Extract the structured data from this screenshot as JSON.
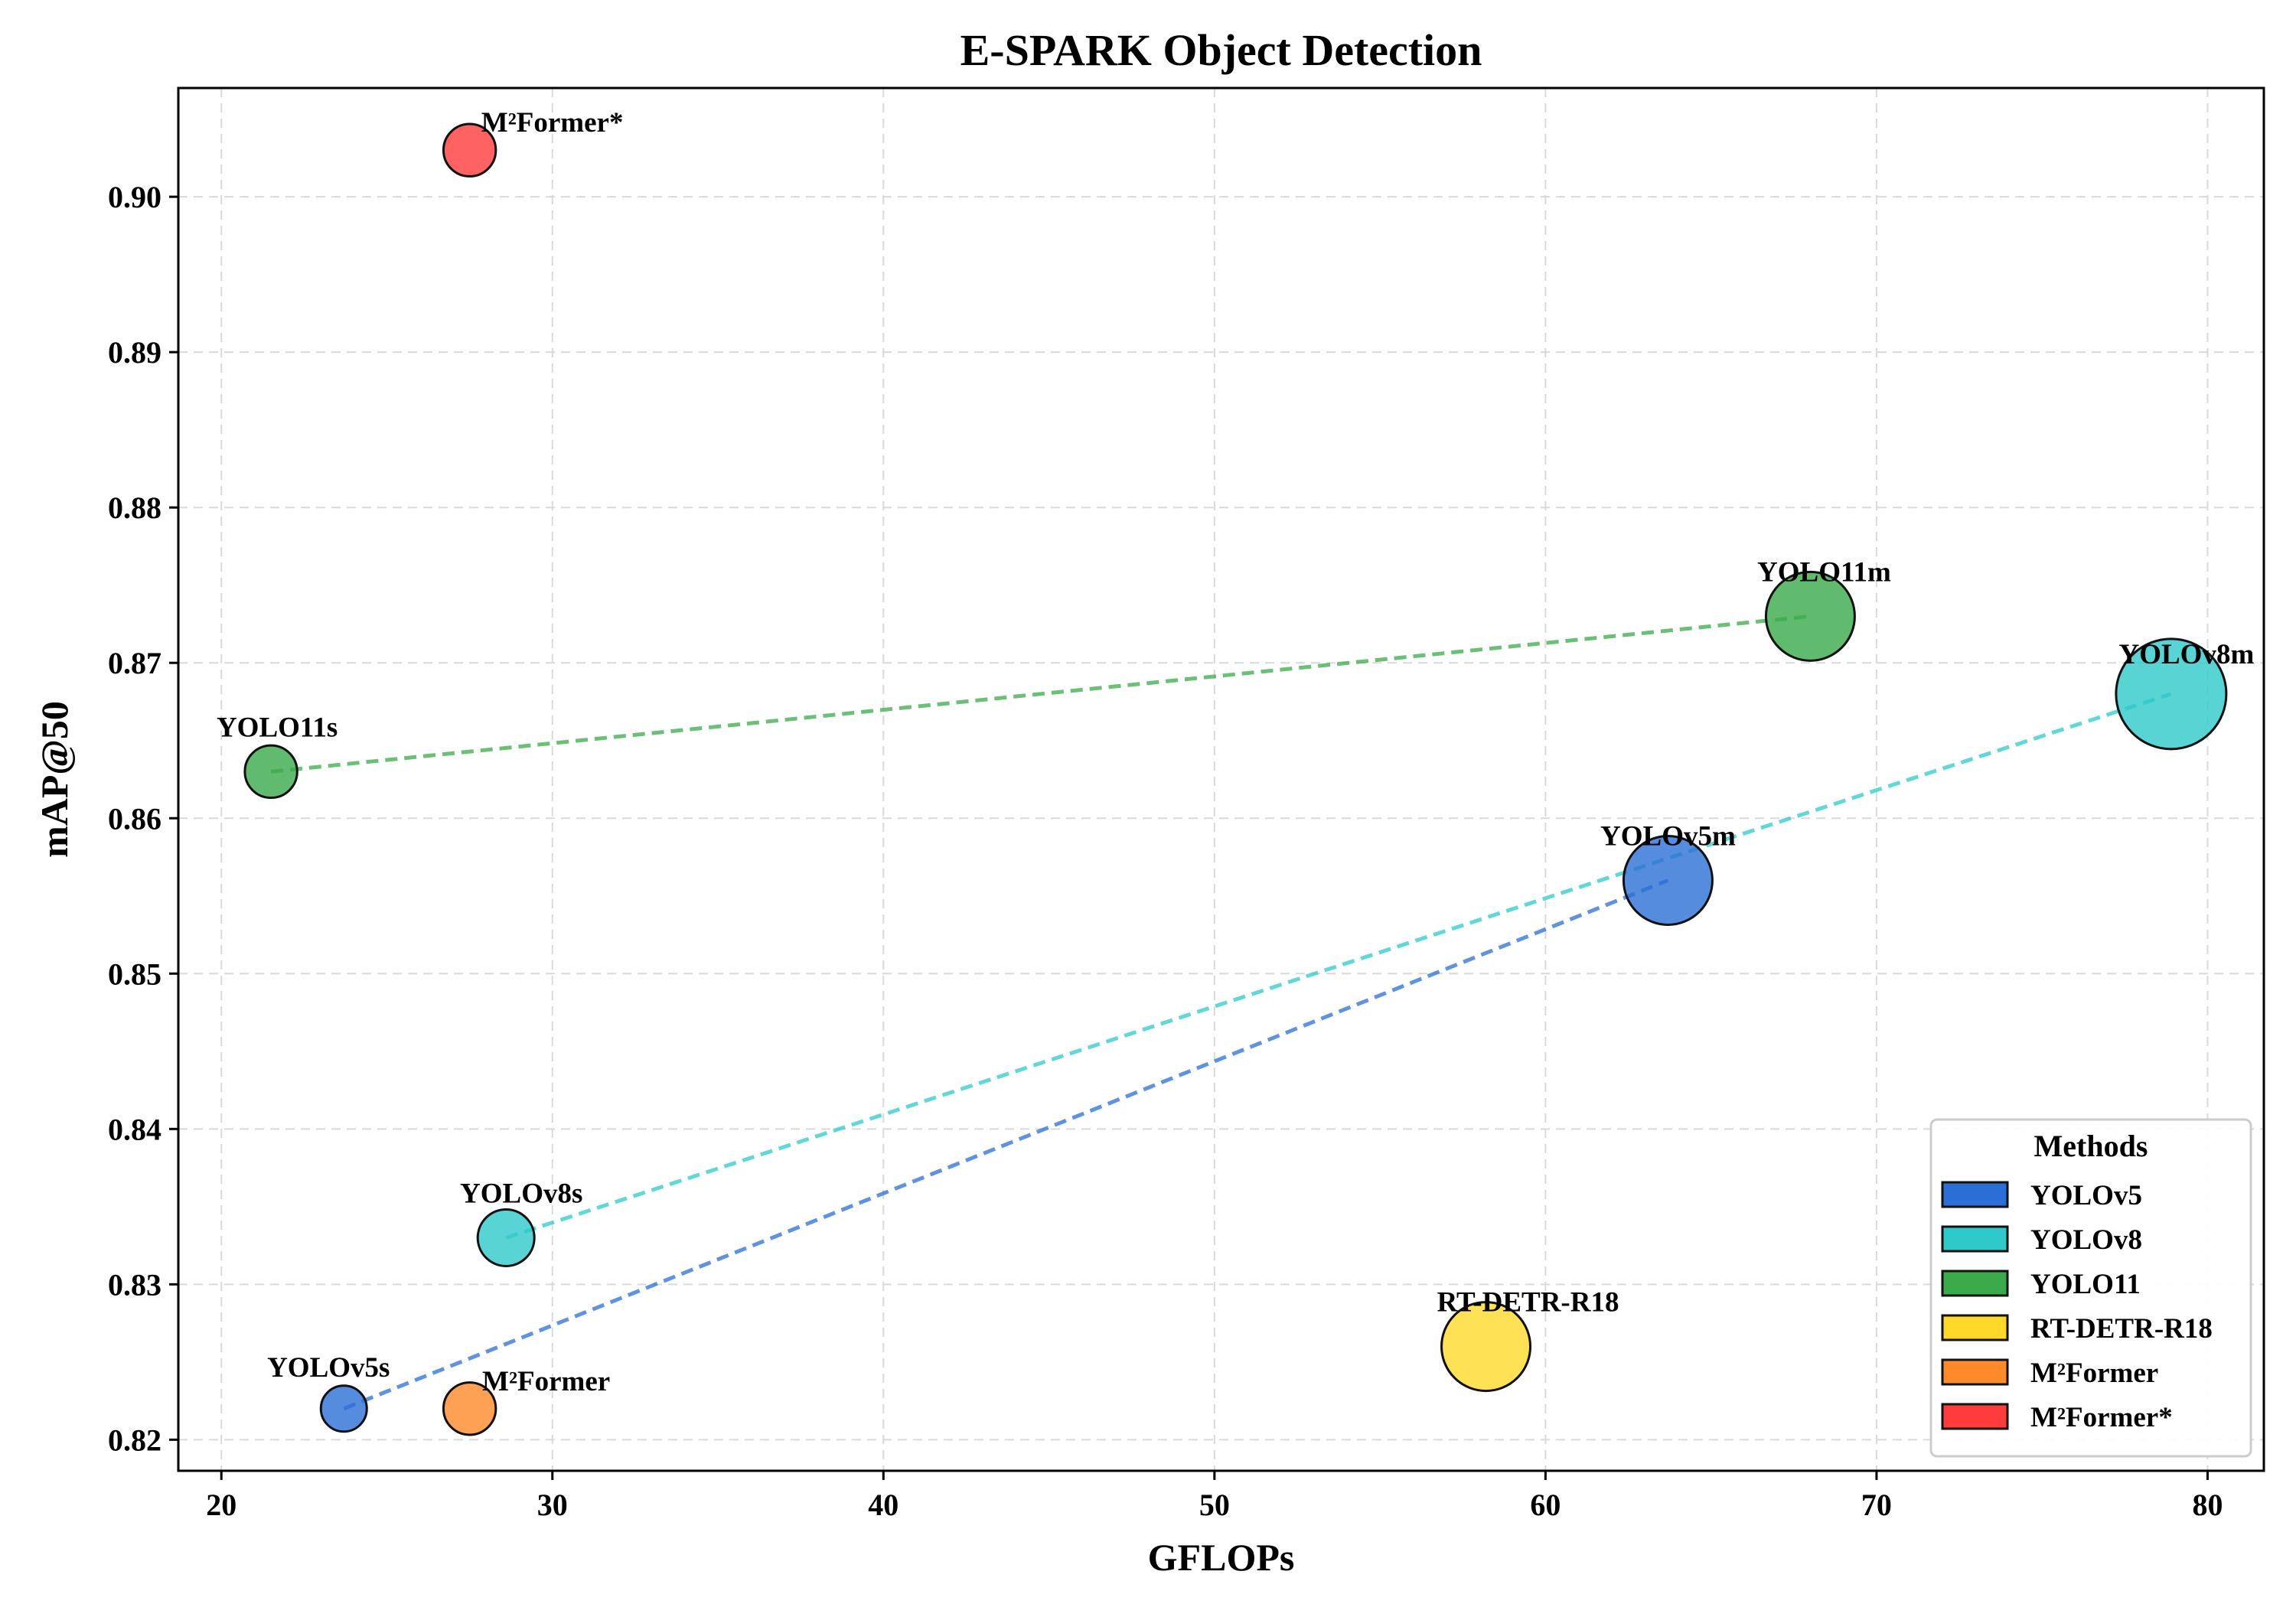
{
  "chart_data": {
    "type": "scatter",
    "title": "E-SPARK Object Detection",
    "xlabel": "GFLOPs",
    "ylabel": "mAP@50",
    "xlim": [
      18.7,
      81.7
    ],
    "ylim": [
      0.818,
      0.907
    ],
    "xticks": [
      20,
      30,
      40,
      50,
      60,
      70,
      80
    ],
    "yticks": [
      0.82,
      0.83,
      0.84,
      0.85,
      0.86,
      0.87,
      0.88,
      0.89,
      0.9
    ],
    "ytick_labels": [
      "0.82",
      "0.83",
      "0.84",
      "0.85",
      "0.86",
      "0.87",
      "0.88",
      "0.89",
      "0.90"
    ],
    "grid": true,
    "legend": {
      "title": "Methods",
      "placement": "lower-right"
    },
    "series": [
      {
        "name": "YOLOv5",
        "color": "#2a6fd6",
        "connected": true,
        "points": [
          {
            "label": "YOLOv5s",
            "x": 23.7,
            "y": 0.822,
            "size": 1
          },
          {
            "label": "YOLOv5m",
            "x": 63.7,
            "y": 0.856,
            "size": 3
          }
        ]
      },
      {
        "name": "YOLOv8",
        "color": "#2ec9c9",
        "connected": true,
        "points": [
          {
            "label": "YOLOv8s",
            "x": 28.6,
            "y": 0.833,
            "size": 1.5
          },
          {
            "label": "YOLOv8m",
            "x": 78.9,
            "y": 0.868,
            "size": 4
          }
        ]
      },
      {
        "name": "YOLO11",
        "color": "#3aaa4a",
        "connected": true,
        "points": [
          {
            "label": "YOLO11s",
            "x": 21.5,
            "y": 0.863,
            "size": 1.3
          },
          {
            "label": "YOLO11m",
            "x": 68.0,
            "y": 0.873,
            "size": 3
          }
        ]
      },
      {
        "name": "RT-DETR-R18",
        "color": "#ffd92a",
        "connected": false,
        "points": [
          {
            "label": "RT-DETR-R18",
            "x": 58.2,
            "y": 0.826,
            "size": 3
          }
        ]
      },
      {
        "name": "M²Former",
        "color": "#ff8a2a",
        "connected": false,
        "points": [
          {
            "label": "M²Former",
            "x": 27.5,
            "y": 0.822,
            "size": 1.3
          }
        ]
      },
      {
        "name": "M²Former*",
        "color": "#ff3b3b",
        "connected": false,
        "points": [
          {
            "label": "M²Former*",
            "x": 27.5,
            "y": 0.903,
            "size": 1.3
          }
        ]
      }
    ]
  }
}
